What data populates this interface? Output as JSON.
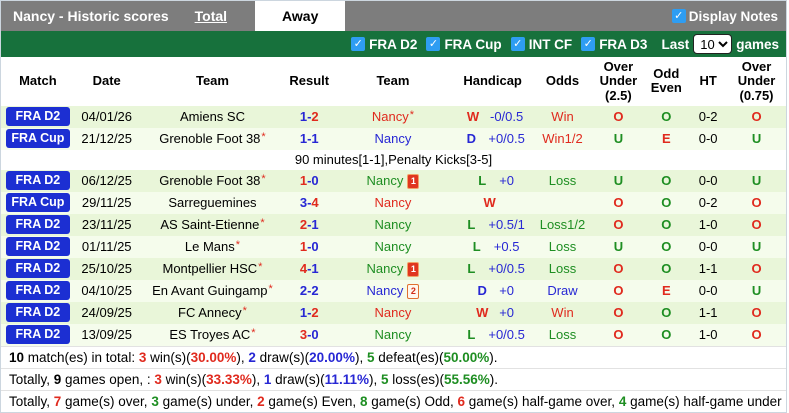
{
  "topbar": {
    "title": "Nancy - Historic scores",
    "tab_total": "Total",
    "tab_away": "Away",
    "display_notes_label": "Display Notes",
    "display_notes_checked": true
  },
  "filterbar": {
    "leagues": [
      {
        "label": "FRA D2",
        "checked": true
      },
      {
        "label": "FRA Cup",
        "checked": true
      },
      {
        "label": "INT CF",
        "checked": true
      },
      {
        "label": "FRA D3",
        "checked": true
      }
    ],
    "last_label": "Last",
    "games_label": "games",
    "selected_count": "10"
  },
  "colors": {
    "red": "#e02a1e",
    "blue": "#2727d4",
    "green": "#1e8e22",
    "badge_bg": "#1c2fd2",
    "filterbar_bg": "#17713c",
    "topbar_bg": "#7d7d7d",
    "row_shade_a": "#e9f6d9",
    "row_shade_b": "#f5fcec",
    "checkbox_blue": "#2e9df2"
  },
  "table": {
    "headers": [
      "Match",
      "Date",
      "Team",
      "Result",
      "Team",
      "Handicap",
      "Odds",
      "Over\nUnder\n(2.5)",
      "Odd\nEven",
      "HT",
      "Over\nUnder\n(0.75)"
    ],
    "rows": [
      {
        "type": "match",
        "league": "FRA D2",
        "date": "04/01/26",
        "home": "Amiens SC",
        "home_star": false,
        "score": [
          "1",
          "2"
        ],
        "score_colors": [
          "blue",
          "red"
        ],
        "res": "W",
        "res_color": "red",
        "away": "Nancy",
        "away_star": true,
        "away_color": "red",
        "card": null,
        "handicap": "-0/0.5",
        "odds": "Win",
        "odds_color": "red",
        "ou25": "O",
        "ou25_color": "red",
        "oe": "O",
        "oe_color": "green",
        "ht": "0-2",
        "ou075": "O",
        "ou075_color": "red"
      },
      {
        "type": "match",
        "league": "FRA Cup",
        "date": "21/12/25",
        "home": "Grenoble Foot 38",
        "home_star": true,
        "score": [
          "1",
          "1"
        ],
        "score_colors": [
          "blue",
          "blue"
        ],
        "res": "D",
        "res_color": "blue",
        "away": "Nancy",
        "away_star": false,
        "away_color": "blue",
        "card": null,
        "handicap": "+0/0.5",
        "odds": "Win1/2",
        "odds_color": "red",
        "ou25": "U",
        "ou25_color": "green",
        "oe": "E",
        "oe_color": "red",
        "ht": "0-0",
        "ou075": "U",
        "ou075_color": "green"
      },
      {
        "type": "note",
        "text": "90 minutes[1-1],Penalty Kicks[3-5]"
      },
      {
        "type": "match",
        "league": "FRA D2",
        "date": "06/12/25",
        "home": "Grenoble Foot 38",
        "home_star": true,
        "score": [
          "1",
          "0"
        ],
        "score_colors": [
          "red",
          "blue"
        ],
        "res": "L",
        "res_color": "green",
        "away": "Nancy",
        "away_star": false,
        "away_color": "green",
        "card": {
          "kind": "red",
          "count": "1"
        },
        "handicap": "+0",
        "odds": "Loss",
        "odds_color": "green",
        "ou25": "U",
        "ou25_color": "green",
        "oe": "O",
        "oe_color": "green",
        "ht": "0-0",
        "ou075": "U",
        "ou075_color": "green"
      },
      {
        "type": "match",
        "league": "FRA Cup",
        "date": "29/11/25",
        "home": "Sarreguemines",
        "home_star": false,
        "score": [
          "3",
          "4"
        ],
        "score_colors": [
          "blue",
          "red"
        ],
        "res": "W",
        "res_color": "red",
        "away": "Nancy",
        "away_star": false,
        "away_color": "red",
        "card": null,
        "handicap": "",
        "odds": "",
        "odds_color": "black",
        "ou25": "O",
        "ou25_color": "red",
        "oe": "O",
        "oe_color": "green",
        "ht": "0-2",
        "ou075": "O",
        "ou075_color": "red"
      },
      {
        "type": "match",
        "league": "FRA D2",
        "date": "23/11/25",
        "home": "AS Saint-Etienne",
        "home_star": true,
        "score": [
          "2",
          "1"
        ],
        "score_colors": [
          "red",
          "blue"
        ],
        "res": "L",
        "res_color": "green",
        "away": "Nancy",
        "away_star": false,
        "away_color": "green",
        "card": null,
        "handicap": "+0.5/1",
        "odds": "Loss1/2",
        "odds_color": "green",
        "ou25": "O",
        "ou25_color": "red",
        "oe": "O",
        "oe_color": "green",
        "ht": "1-0",
        "ou075": "O",
        "ou075_color": "red"
      },
      {
        "type": "match",
        "league": "FRA D2",
        "date": "01/11/25",
        "home": "Le Mans",
        "home_star": true,
        "score": [
          "1",
          "0"
        ],
        "score_colors": [
          "red",
          "blue"
        ],
        "res": "L",
        "res_color": "green",
        "away": "Nancy",
        "away_star": false,
        "away_color": "green",
        "card": null,
        "handicap": "+0.5",
        "odds": "Loss",
        "odds_color": "green",
        "ou25": "U",
        "ou25_color": "green",
        "oe": "O",
        "oe_color": "green",
        "ht": "0-0",
        "ou075": "U",
        "ou075_color": "green"
      },
      {
        "type": "match",
        "league": "FRA D2",
        "date": "25/10/25",
        "home": "Montpellier HSC",
        "home_star": true,
        "score": [
          "4",
          "1"
        ],
        "score_colors": [
          "red",
          "blue"
        ],
        "res": "L",
        "res_color": "green",
        "away": "Nancy",
        "away_star": false,
        "away_color": "green",
        "card": {
          "kind": "red",
          "count": "1"
        },
        "handicap": "+0/0.5",
        "odds": "Loss",
        "odds_color": "green",
        "ou25": "O",
        "ou25_color": "red",
        "oe": "O",
        "oe_color": "green",
        "ht": "1-1",
        "ou075": "O",
        "ou075_color": "red"
      },
      {
        "type": "match",
        "league": "FRA D2",
        "date": "04/10/25",
        "home": "En Avant Guingamp",
        "home_star": true,
        "score": [
          "2",
          "2"
        ],
        "score_colors": [
          "blue",
          "blue"
        ],
        "res": "D",
        "res_color": "blue",
        "away": "Nancy",
        "away_star": false,
        "away_color": "blue",
        "card": {
          "kind": "second-yellow",
          "count": "2"
        },
        "handicap": "+0",
        "odds": "Draw",
        "odds_color": "blue",
        "ou25": "O",
        "ou25_color": "red",
        "oe": "E",
        "oe_color": "red",
        "ht": "0-0",
        "ou075": "U",
        "ou075_color": "green"
      },
      {
        "type": "match",
        "league": "FRA D2",
        "date": "24/09/25",
        "home": "FC Annecy",
        "home_star": true,
        "score": [
          "1",
          "2"
        ],
        "score_colors": [
          "blue",
          "red"
        ],
        "res": "W",
        "res_color": "red",
        "away": "Nancy",
        "away_star": false,
        "away_color": "red",
        "card": null,
        "handicap": "+0",
        "odds": "Win",
        "odds_color": "red",
        "ou25": "O",
        "ou25_color": "red",
        "oe": "O",
        "oe_color": "green",
        "ht": "1-1",
        "ou075": "O",
        "ou075_color": "red"
      },
      {
        "type": "match",
        "league": "FRA D2",
        "date": "13/09/25",
        "home": "ES Troyes AC",
        "home_star": true,
        "score": [
          "3",
          "0"
        ],
        "score_colors": [
          "red",
          "blue"
        ],
        "res": "L",
        "res_color": "green",
        "away": "Nancy",
        "away_star": false,
        "away_color": "green",
        "card": null,
        "handicap": "+0/0.5",
        "odds": "Loss",
        "odds_color": "green",
        "ou25": "O",
        "ou25_color": "red",
        "oe": "O",
        "oe_color": "green",
        "ht": "1-0",
        "ou075": "O",
        "ou075_color": "red"
      }
    ]
  },
  "summary": {
    "lines": [
      [
        {
          "t": "10",
          "b": 1
        },
        {
          "t": " match(es) in total: "
        },
        {
          "t": "3",
          "c": "red",
          "b": 1
        },
        {
          "t": " win(s)("
        },
        {
          "t": "30.00%",
          "c": "red",
          "b": 1
        },
        {
          "t": "), "
        },
        {
          "t": "2",
          "c": "blue",
          "b": 1
        },
        {
          "t": " draw(s)("
        },
        {
          "t": "20.00%",
          "c": "blue",
          "b": 1
        },
        {
          "t": "), "
        },
        {
          "t": "5",
          "c": "green",
          "b": 1
        },
        {
          "t": " defeat(es)("
        },
        {
          "t": "50.00%",
          "c": "green",
          "b": 1
        },
        {
          "t": ")."
        }
      ],
      [
        {
          "t": "Totally, "
        },
        {
          "t": "9",
          "b": 1
        },
        {
          "t": " games open, : "
        },
        {
          "t": "3",
          "c": "red",
          "b": 1
        },
        {
          "t": " win(s)("
        },
        {
          "t": "33.33%",
          "c": "red",
          "b": 1
        },
        {
          "t": "), "
        },
        {
          "t": "1",
          "c": "blue",
          "b": 1
        },
        {
          "t": " draw(s)("
        },
        {
          "t": "11.11%",
          "c": "blue",
          "b": 1
        },
        {
          "t": "), "
        },
        {
          "t": "5",
          "c": "green",
          "b": 1
        },
        {
          "t": " loss(es)("
        },
        {
          "t": "55.56%",
          "c": "green",
          "b": 1
        },
        {
          "t": ")."
        }
      ],
      [
        {
          "t": "Totally, "
        },
        {
          "t": "7",
          "c": "red",
          "b": 1
        },
        {
          "t": " game(s) over, "
        },
        {
          "t": "3",
          "c": "green",
          "b": 1
        },
        {
          "t": " game(s) under, "
        },
        {
          "t": "2",
          "c": "red",
          "b": 1
        },
        {
          "t": " game(s) Even, "
        },
        {
          "t": "8",
          "c": "green",
          "b": 1
        },
        {
          "t": " game(s) Odd, "
        },
        {
          "t": "6",
          "c": "red",
          "b": 1
        },
        {
          "t": " game(s) half-game over, "
        },
        {
          "t": "4",
          "c": "green",
          "b": 1
        },
        {
          "t": " game(s) half-game under"
        }
      ]
    ]
  }
}
